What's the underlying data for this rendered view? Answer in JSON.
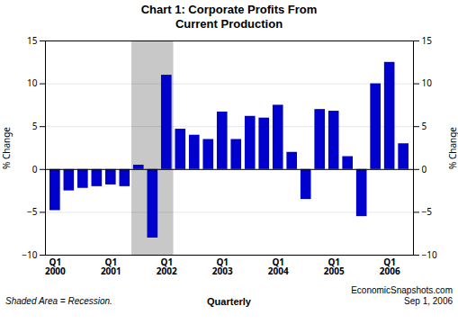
{
  "chart_data": {
    "type": "bar",
    "title": "Chart 1: Corporate Profits From\nCurrent Production",
    "xlabel": "Quarterly",
    "ylabel": "% Change",
    "y2label": "% Change",
    "categories": [
      "Q1\n2000",
      null,
      null,
      null,
      "Q1\n2001",
      null,
      null,
      null,
      "Q1\n2002",
      null,
      null,
      null,
      "Q1\n2003",
      null,
      null,
      null,
      "Q1\n2004",
      null,
      null,
      null,
      "Q1\n2005",
      null,
      null,
      null,
      "Q1\n2006",
      null
    ],
    "values": [
      -4.8,
      -2.5,
      -2.2,
      -2.0,
      -1.8,
      -2.0,
      0.5,
      -8.0,
      11.0,
      4.7,
      4.0,
      3.5,
      6.7,
      3.5,
      6.2,
      6.0,
      7.5,
      2.0,
      -3.5,
      7.0,
      6.8,
      1.5,
      -5.5,
      10.0,
      12.5,
      3.0
    ],
    "color": "#0000CC",
    "ylim": [
      -10,
      15
    ],
    "yticks": [
      -10,
      -5,
      0,
      5,
      10,
      15
    ],
    "y2lim": [
      -10,
      15
    ],
    "y2ticks": [
      -10,
      -5,
      0,
      5,
      10,
      15
    ],
    "grid": true,
    "recession": {
      "start": 5.5,
      "end": 8.5,
      "color": "#C8C8C8"
    },
    "annotations": [
      "Shaded Area = Recession.",
      "EconomicSnapshots.com\nSep 1, 2006"
    ]
  }
}
